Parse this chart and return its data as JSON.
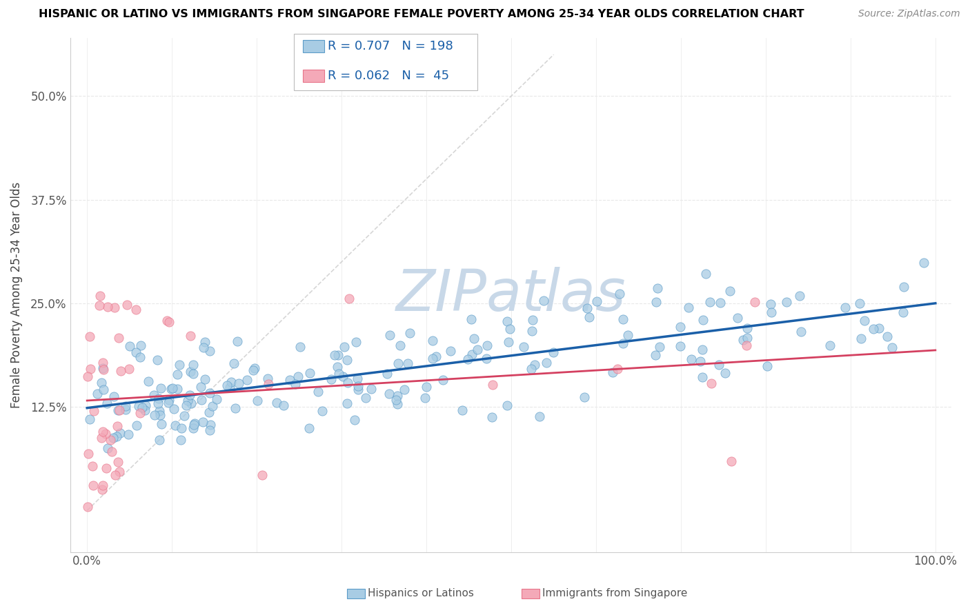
{
  "title": "HISPANIC OR LATINO VS IMMIGRANTS FROM SINGAPORE FEMALE POVERTY AMONG 25-34 YEAR OLDS CORRELATION CHART",
  "source": "Source: ZipAtlas.com",
  "ylabel": "Female Poverty Among 25-34 Year Olds",
  "xlim": [
    -2,
    102
  ],
  "ylim": [
    -5,
    57
  ],
  "yticks": [
    0,
    12.5,
    25.0,
    37.5,
    50.0
  ],
  "ytick_labels": [
    "",
    "12.5%",
    "25.0%",
    "37.5%",
    "50.0%"
  ],
  "xtick_vals": [
    0,
    10,
    20,
    30,
    40,
    50,
    60,
    70,
    80,
    90,
    100
  ],
  "xtick_labels": [
    "0.0%",
    "",
    "",
    "",
    "",
    "",
    "",
    "",
    "",
    "",
    "100.0%"
  ],
  "legend1_R": "0.707",
  "legend1_N": "198",
  "legend2_R": "0.062",
  "legend2_N": "45",
  "blue_face_color": "#a8cce4",
  "blue_edge_color": "#5b9bc8",
  "pink_face_color": "#f4a9b8",
  "pink_edge_color": "#e8748a",
  "blue_line_color": "#1a5fa8",
  "pink_line_color": "#d44060",
  "diag_color": "#cccccc",
  "watermark_color": "#c8d8e8",
  "grid_color": "#e8e8e8",
  "title_fontsize": 11.5,
  "source_fontsize": 10,
  "tick_fontsize": 12,
  "ylabel_fontsize": 12,
  "legend_fontsize": 13
}
